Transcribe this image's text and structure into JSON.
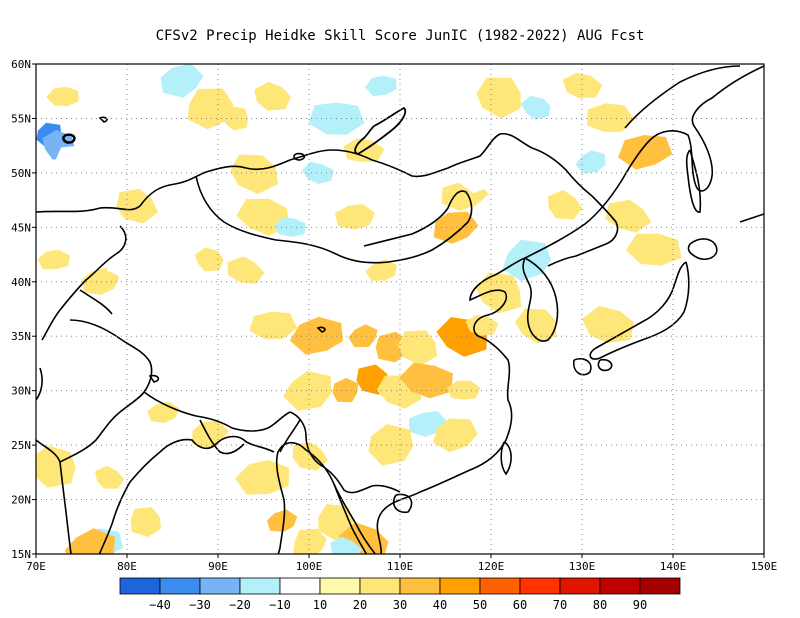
{
  "title": "CFSv2 Precip Heidke Skill Score JunIC (1982-2022) AUG Fcst",
  "map": {
    "lon_range": [
      70,
      150
    ],
    "lat_range": [
      15,
      60
    ],
    "x_ticks": [
      "70E",
      "80E",
      "90E",
      "100E",
      "110E",
      "120E",
      "130E",
      "140E",
      "150E"
    ],
    "y_ticks": [
      "15N",
      "20N",
      "25N",
      "30N",
      "35N",
      "40N",
      "45N",
      "50N",
      "55N",
      "60N"
    ],
    "grid": true
  },
  "colorbar": {
    "colors": [
      "#1e64dc",
      "#3c8cf0",
      "#78b4f5",
      "#b4f0fa",
      "#ffffff",
      "#fffaaa",
      "#ffe678",
      "#ffc040",
      "#ffa000",
      "#ff6000",
      "#ff3200",
      "#e11400",
      "#c00000",
      "#a50000"
    ],
    "labels": [
      "-40",
      "-30",
      "-20",
      "-10",
      "10",
      "20",
      "30",
      "40",
      "50",
      "60",
      "70",
      "80",
      "90"
    ]
  },
  "skill_patches": [
    {
      "lon": 71.5,
      "lat": 53.5,
      "value": -40
    },
    {
      "lon": 72.5,
      "lat": 52.5,
      "value": -30
    },
    {
      "lon": 71,
      "lat": 50,
      "value": -10
    },
    {
      "lon": 75,
      "lat": 51,
      "value": -10
    },
    {
      "lon": 73,
      "lat": 57,
      "value": 20
    },
    {
      "lon": 78,
      "lat": 56,
      "value": -10
    },
    {
      "lon": 86,
      "lat": 58.5,
      "value": -20
    },
    {
      "lon": 89,
      "lat": 56,
      "value": 20
    },
    {
      "lon": 92,
      "lat": 55,
      "value": 20
    },
    {
      "lon": 96,
      "lat": 57,
      "value": 20
    },
    {
      "lon": 101,
      "lat": 58,
      "value": -10
    },
    {
      "lon": 103,
      "lat": 55,
      "value": -20
    },
    {
      "lon": 108,
      "lat": 58,
      "value": -20
    },
    {
      "lon": 110,
      "lat": 54,
      "value": -10
    },
    {
      "lon": 116,
      "lat": 58,
      "value": -10
    },
    {
      "lon": 121,
      "lat": 57,
      "value": 20
    },
    {
      "lon": 125,
      "lat": 56,
      "value": -20
    },
    {
      "lon": 130,
      "lat": 58,
      "value": 20
    },
    {
      "lon": 133,
      "lat": 55,
      "value": 20
    },
    {
      "lon": 137,
      "lat": 52,
      "value": 30
    },
    {
      "lon": 131,
      "lat": 51,
      "value": -20
    },
    {
      "lon": 127,
      "lat": 50,
      "value": -10
    },
    {
      "lon": 84,
      "lat": 51,
      "value": -10
    },
    {
      "lon": 94,
      "lat": 50,
      "value": 20
    },
    {
      "lon": 101,
      "lat": 50,
      "value": -20
    },
    {
      "lon": 106,
      "lat": 52,
      "value": 20
    },
    {
      "lon": 117,
      "lat": 48,
      "value": 20
    },
    {
      "lon": 119,
      "lat": 50,
      "value": -10
    },
    {
      "lon": 71,
      "lat": 45,
      "value": -10
    },
    {
      "lon": 75,
      "lat": 47,
      "value": -10
    },
    {
      "lon": 81,
      "lat": 47,
      "value": 20
    },
    {
      "lon": 95,
      "lat": 46,
      "value": 20
    },
    {
      "lon": 98,
      "lat": 45,
      "value": -20
    },
    {
      "lon": 105,
      "lat": 46,
      "value": 20
    },
    {
      "lon": 116,
      "lat": 45,
      "value": 30
    },
    {
      "lon": 124,
      "lat": 42,
      "value": -20
    },
    {
      "lon": 126,
      "lat": 45,
      "value": -10
    },
    {
      "lon": 128,
      "lat": 47,
      "value": 20
    },
    {
      "lon": 135,
      "lat": 46,
      "value": 20
    },
    {
      "lon": 138,
      "lat": 43,
      "value": 20
    },
    {
      "lon": 72,
      "lat": 42,
      "value": 20
    },
    {
      "lon": 77,
      "lat": 40,
      "value": 20
    },
    {
      "lon": 80,
      "lat": 42,
      "value": -10
    },
    {
      "lon": 86,
      "lat": 44,
      "value": -10
    },
    {
      "lon": 89,
      "lat": 42,
      "value": 20
    },
    {
      "lon": 93,
      "lat": 41,
      "value": 20
    },
    {
      "lon": 97,
      "lat": 43,
      "value": -10
    },
    {
      "lon": 106,
      "lat": 42,
      "value": -10
    },
    {
      "lon": 108,
      "lat": 41,
      "value": 20
    },
    {
      "lon": 113,
      "lat": 41,
      "value": -10
    },
    {
      "lon": 118,
      "lat": 40,
      "value": -10
    },
    {
      "lon": 121,
      "lat": 39,
      "value": 20
    },
    {
      "lon": 73,
      "lat": 37,
      "value": -10
    },
    {
      "lon": 78,
      "lat": 35,
      "value": -10
    },
    {
      "lon": 96,
      "lat": 36,
      "value": 20
    },
    {
      "lon": 101,
      "lat": 35,
      "value": 30
    },
    {
      "lon": 106,
      "lat": 35,
      "value": 30
    },
    {
      "lon": 109,
      "lat": 34,
      "value": 30
    },
    {
      "lon": 112,
      "lat": 34,
      "value": 20
    },
    {
      "lon": 117,
      "lat": 35,
      "value": 40
    },
    {
      "lon": 119,
      "lat": 36,
      "value": 20
    },
    {
      "lon": 93,
      "lat": 33,
      "value": -10
    },
    {
      "lon": 97,
      "lat": 31,
      "value": -10
    },
    {
      "lon": 100,
      "lat": 30,
      "value": 20
    },
    {
      "lon": 104,
      "lat": 30,
      "value": 30
    },
    {
      "lon": 107,
      "lat": 31,
      "value": 40
    },
    {
      "lon": 110,
      "lat": 30,
      "value": 20
    },
    {
      "lon": 113,
      "lat": 31,
      "value": 30
    },
    {
      "lon": 117,
      "lat": 30,
      "value": 20
    },
    {
      "lon": 113,
      "lat": 27,
      "value": -20
    },
    {
      "lon": 116,
      "lat": 26,
      "value": 20
    },
    {
      "lon": 109,
      "lat": 25,
      "value": 20
    },
    {
      "lon": 105,
      "lat": 26,
      "value": -10
    },
    {
      "lon": 100,
      "lat": 24,
      "value": 20
    },
    {
      "lon": 76,
      "lat": 31,
      "value": -10
    },
    {
      "lon": 80,
      "lat": 29,
      "value": -10
    },
    {
      "lon": 84,
      "lat": 28,
      "value": 20
    },
    {
      "lon": 89,
      "lat": 26,
      "value": 20
    },
    {
      "lon": 76,
      "lat": 26,
      "value": -10
    },
    {
      "lon": 72,
      "lat": 23,
      "value": 20
    },
    {
      "lon": 78,
      "lat": 22,
      "value": 20
    },
    {
      "lon": 82,
      "lat": 24,
      "value": -10
    },
    {
      "lon": 87,
      "lat": 21,
      "value": -10
    },
    {
      "lon": 95,
      "lat": 22,
      "value": 20
    },
    {
      "lon": 97,
      "lat": 18,
      "value": 30
    },
    {
      "lon": 100,
      "lat": 16,
      "value": 20
    },
    {
      "lon": 103,
      "lat": 18,
      "value": 20
    },
    {
      "lon": 106,
      "lat": 16,
      "value": 30
    },
    {
      "lon": 104,
      "lat": 15.5,
      "value": -20
    },
    {
      "lon": 78,
      "lat": 18,
      "value": -10
    },
    {
      "lon": 77,
      "lat": 16,
      "value": -20
    },
    {
      "lon": 76,
      "lat": 15.5,
      "value": 30
    },
    {
      "lon": 71,
      "lat": 18,
      "value": -10
    },
    {
      "lon": 82,
      "lat": 18,
      "value": 20
    },
    {
      "lon": 125,
      "lat": 36,
      "value": 20
    },
    {
      "lon": 133,
      "lat": 36,
      "value": 20
    },
    {
      "lon": 128,
      "lat": 39,
      "value": -10
    },
    {
      "lon": 123,
      "lat": 33,
      "value": -10
    }
  ]
}
